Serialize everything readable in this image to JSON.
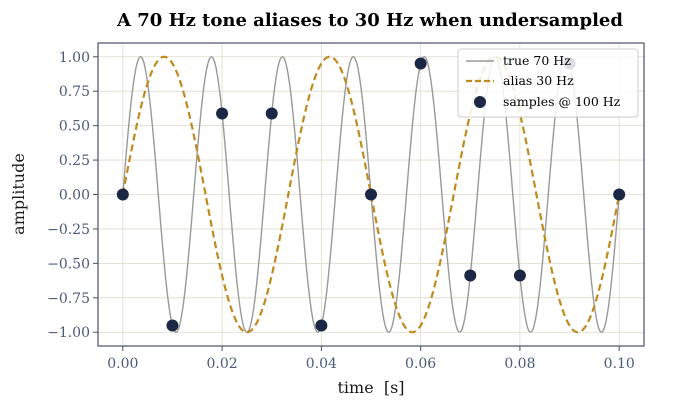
{
  "chart_data": {
    "type": "line",
    "title": "A 70 Hz tone aliases to 30 Hz when undersampled",
    "xlabel": "time  [s]",
    "ylabel": "amplitude",
    "xlim": [
      -0.005,
      0.105
    ],
    "ylim": [
      -1.1,
      1.1
    ],
    "xticks": [
      0.0,
      0.02,
      0.04,
      0.06,
      0.08,
      0.1
    ],
    "xtick_labels": [
      "0.00",
      "0.02",
      "0.04",
      "0.06",
      "0.08",
      "0.10"
    ],
    "yticks": [
      1.0,
      0.75,
      0.5,
      0.25,
      0.0,
      -0.25,
      -0.5,
      -0.75,
      -1.0
    ],
    "ytick_labels": [
      "1.00",
      "0.75",
      "0.50",
      "0.25",
      "0.00",
      "−0.25",
      "−0.50",
      "−0.75",
      "−1.00"
    ],
    "grid": true,
    "legend_position": "top-right",
    "series": [
      {
        "name": "true 70 Hz",
        "kind": "line",
        "frequency_hz": 70,
        "x_range": [
          0.0,
          0.1
        ],
        "color": "#999999",
        "style": "solid"
      },
      {
        "name": "alias 30 Hz",
        "kind": "line",
        "frequency_hz": 30,
        "x_range": [
          0.0,
          0.1
        ],
        "color": "#c18a1e",
        "style": "dashed"
      },
      {
        "name": "samples @ 100 Hz",
        "kind": "scatter",
        "color": "#1c2745",
        "x": [
          0.0,
          0.01,
          0.02,
          0.03,
          0.04,
          0.05,
          0.06,
          0.07,
          0.08,
          0.09,
          0.1
        ],
        "y": [
          0.0,
          -0.951,
          0.588,
          0.588,
          -0.951,
          0.0,
          0.951,
          -0.588,
          -0.588,
          0.951,
          0.0
        ]
      }
    ]
  }
}
